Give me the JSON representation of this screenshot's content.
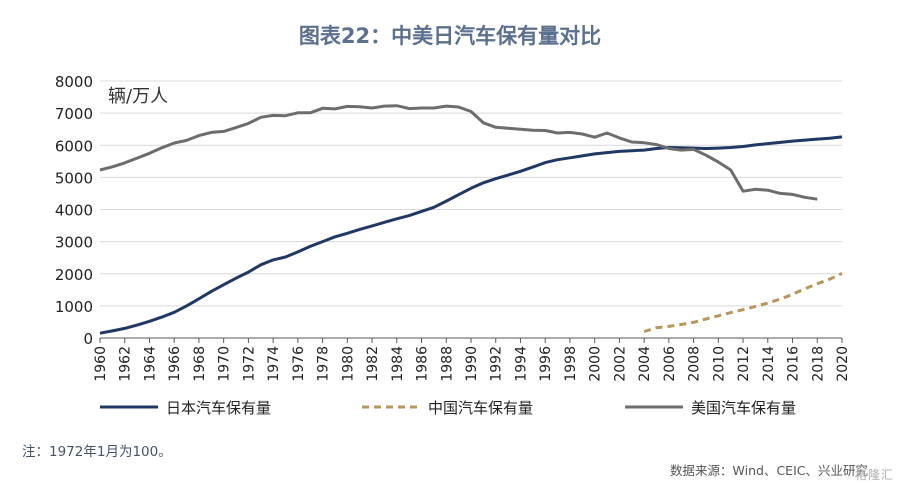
{
  "chart_data": {
    "type": "line",
    "title": "图表22：中美日汽车保有量对比",
    "unit_label": "辆/万人",
    "ylim": [
      0,
      8000
    ],
    "yticks": [
      0,
      1000,
      2000,
      3000,
      4000,
      5000,
      6000,
      7000,
      8000
    ],
    "xlim": [
      1960,
      2020
    ],
    "xticks": [
      1960,
      1962,
      1964,
      1966,
      1968,
      1970,
      1972,
      1974,
      1976,
      1978,
      1980,
      1982,
      1984,
      1986,
      1988,
      1990,
      1992,
      1994,
      1996,
      1998,
      2000,
      2002,
      2004,
      2006,
      2008,
      2010,
      2012,
      2014,
      2016,
      2018,
      2020
    ],
    "grid": "horizontal",
    "legend_position": "bottom",
    "series": [
      {
        "name": "日本汽车保有量",
        "color": "#1f3864",
        "line_style": "solid",
        "x": [
          1960,
          1961,
          1962,
          1963,
          1964,
          1965,
          1966,
          1967,
          1968,
          1969,
          1970,
          1971,
          1972,
          1973,
          1974,
          1975,
          1976,
          1977,
          1978,
          1979,
          1980,
          1981,
          1982,
          1983,
          1984,
          1985,
          1986,
          1987,
          1988,
          1989,
          1990,
          1991,
          1992,
          1993,
          1994,
          1995,
          1996,
          1997,
          1998,
          1999,
          2000,
          2001,
          2002,
          2003,
          2004,
          2005,
          2006,
          2007,
          2008,
          2009,
          2010,
          2011,
          2012,
          2013,
          2014,
          2015,
          2016,
          2017,
          2018,
          2019,
          2020
        ],
        "values": [
          150,
          220,
          300,
          400,
          520,
          650,
          800,
          1000,
          1220,
          1450,
          1660,
          1860,
          2050,
          2280,
          2430,
          2520,
          2680,
          2850,
          3000,
          3150,
          3260,
          3380,
          3490,
          3600,
          3710,
          3810,
          3940,
          4070,
          4260,
          4460,
          4660,
          4830,
          4960,
          5070,
          5190,
          5320,
          5460,
          5550,
          5610,
          5670,
          5730,
          5770,
          5810,
          5830,
          5850,
          5900,
          5930,
          5920,
          5910,
          5900,
          5910,
          5930,
          5960,
          6010,
          6050,
          6090,
          6130,
          6160,
          6190,
          6220,
          6260
        ]
      },
      {
        "name": "中国汽车保有量",
        "color": "#b8955a",
        "line_style": "dashed",
        "x": [
          2004,
          2005,
          2006,
          2007,
          2008,
          2009,
          2010,
          2011,
          2012,
          2013,
          2014,
          2015,
          2016,
          2017,
          2018,
          2019,
          2020
        ],
        "values": [
          200,
          320,
          360,
          420,
          490,
          590,
          690,
          790,
          880,
          980,
          1090,
          1210,
          1360,
          1530,
          1690,
          1830,
          2010
        ]
      },
      {
        "name": "美国汽车保有量",
        "color": "#6d6d6d",
        "line_style": "solid",
        "x": [
          1960,
          1961,
          1962,
          1963,
          1964,
          1965,
          1966,
          1967,
          1968,
          1969,
          1970,
          1971,
          1972,
          1973,
          1974,
          1975,
          1976,
          1977,
          1978,
          1979,
          1980,
          1981,
          1982,
          1983,
          1984,
          1985,
          1986,
          1987,
          1988,
          1989,
          1990,
          1991,
          1992,
          1993,
          1994,
          1995,
          1996,
          1997,
          1998,
          1999,
          2000,
          2001,
          2002,
          2003,
          2004,
          2005,
          2006,
          2007,
          2008,
          2009,
          2010,
          2011,
          2012,
          2013,
          2014,
          2015,
          2016,
          2017,
          2018
        ],
        "values": [
          5230,
          5330,
          5450,
          5600,
          5750,
          5920,
          6070,
          6150,
          6300,
          6400,
          6430,
          6550,
          6680,
          6870,
          6930,
          6920,
          7010,
          7010,
          7150,
          7130,
          7210,
          7200,
          7160,
          7220,
          7230,
          7140,
          7160,
          7160,
          7220,
          7190,
          7050,
          6700,
          6560,
          6530,
          6500,
          6470,
          6460,
          6380,
          6400,
          6350,
          6250,
          6380,
          6230,
          6100,
          6080,
          6020,
          5900,
          5850,
          5870,
          5690,
          5480,
          5230,
          4570,
          4630,
          4600,
          4500,
          4470,
          4380,
          4320
        ]
      }
    ]
  },
  "note": "注：1972年1月为100。",
  "source": "数据来源：Wind、CEIC、兴业研究",
  "watermark": "格隆汇"
}
